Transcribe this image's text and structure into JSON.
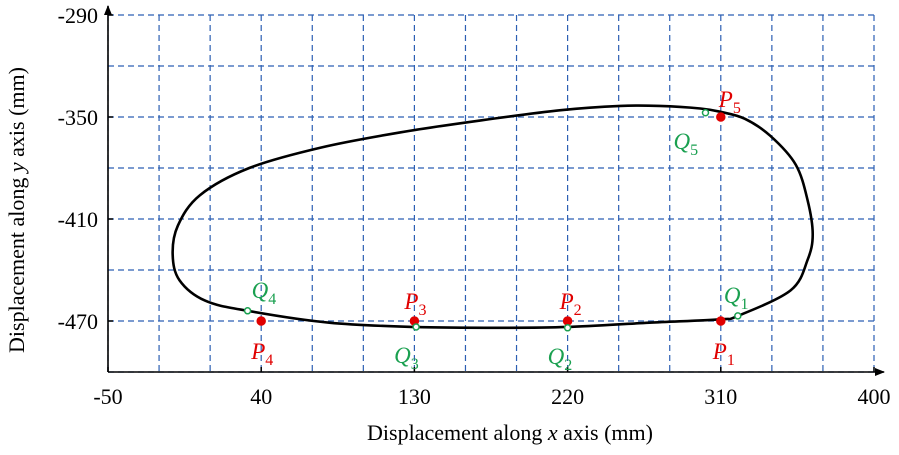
{
  "chart_data": {
    "type": "closed-curve",
    "xlabel": [
      "Displacement along ",
      "x",
      " axis (mm)"
    ],
    "ylabel": [
      "Displacement along ",
      "y",
      " axis (mm)"
    ],
    "xlim": [
      -50,
      400
    ],
    "ylim": [
      -500,
      -290
    ],
    "xticks": [
      -50,
      40,
      130,
      220,
      310,
      400
    ],
    "yticks": [
      -290,
      -350,
      -410,
      -470
    ],
    "xgrid": [
      -50,
      -20,
      10,
      40,
      70,
      100,
      130,
      160,
      190,
      220,
      250,
      280,
      310,
      340,
      370,
      400
    ],
    "ygrid": [
      -290,
      -320,
      -350,
      -380,
      -410,
      -440,
      -470,
      -500
    ],
    "grid": true,
    "curve": {
      "color": "#000000",
      "x": [
        310,
        320,
        351,
        361,
        364,
        361,
        354,
        339,
        324,
        310,
        298,
        274,
        251,
        216,
        169,
        122,
        75,
        33,
        4,
        -9,
        -12,
        -8,
        7,
        32,
        80,
        130,
        180,
        220,
        268
      ],
      "y": [
        -469,
        -467,
        -452,
        -434,
        -419,
        -399,
        -378,
        -361,
        -351,
        -347,
        -345,
        -343.5,
        -343.5,
        -346,
        -352,
        -359,
        -368,
        -380,
        -396,
        -414,
        -431,
        -446,
        -458,
        -464,
        -471,
        -473.5,
        -474,
        -473.5,
        -471
      ]
    },
    "points": [
      {
        "label": "P",
        "sub": "1",
        "x": 310,
        "y": -470,
        "color": "#e00000"
      },
      {
        "label": "P",
        "sub": "2",
        "x": 220,
        "y": -470,
        "color": "#e00000"
      },
      {
        "label": "P",
        "sub": "3",
        "x": 130,
        "y": -470,
        "color": "#e00000"
      },
      {
        "label": "P",
        "sub": "4",
        "x": 40,
        "y": -470,
        "color": "#e00000"
      },
      {
        "label": "P",
        "sub": "5",
        "x": 310,
        "y": -350,
        "color": "#e00000"
      },
      {
        "label": "Q",
        "sub": "1",
        "x": 320,
        "y": -467,
        "color": "#1aa050"
      },
      {
        "label": "Q",
        "sub": "2",
        "x": 220,
        "y": -474,
        "color": "#1aa050"
      },
      {
        "label": "Q",
        "sub": "3",
        "x": 131,
        "y": -473.5,
        "color": "#1aa050"
      },
      {
        "label": "Q",
        "sub": "4",
        "x": 32,
        "y": -464,
        "color": "#1aa050"
      },
      {
        "label": "Q",
        "sub": "5",
        "x": 301,
        "y": -347.5,
        "color": "#1aa050"
      }
    ]
  }
}
